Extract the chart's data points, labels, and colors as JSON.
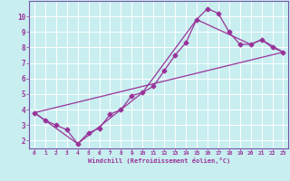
{
  "xlabel": "Windchill (Refroidissement éolien,°C)",
  "bg_color": "#c8eef0",
  "grid_color": "#ffffff",
  "line_color": "#993399",
  "spine_color": "#7755aa",
  "xlim": [
    -0.5,
    23.5
  ],
  "ylim": [
    1.5,
    11.0
  ],
  "xticks": [
    0,
    1,
    2,
    3,
    4,
    5,
    6,
    7,
    8,
    9,
    10,
    11,
    12,
    13,
    14,
    15,
    16,
    17,
    18,
    19,
    20,
    21,
    22,
    23
  ],
  "yticks": [
    2,
    3,
    4,
    5,
    6,
    7,
    8,
    9,
    10
  ],
  "series1_x": [
    0,
    1,
    2,
    3,
    4,
    5,
    6,
    7,
    8,
    9,
    10,
    11,
    12,
    13,
    14,
    15,
    16,
    17,
    18,
    19,
    20,
    21,
    22,
    23
  ],
  "series1_y": [
    3.8,
    3.3,
    3.0,
    2.7,
    1.8,
    2.5,
    2.8,
    3.7,
    4.0,
    4.9,
    5.1,
    5.5,
    6.5,
    7.5,
    8.3,
    9.8,
    10.5,
    10.2,
    9.0,
    8.2,
    8.2,
    8.5,
    8.0,
    7.7
  ],
  "series2_x": [
    0,
    23
  ],
  "series2_y": [
    3.8,
    7.7
  ],
  "series3_x": [
    0,
    4,
    10,
    15,
    20,
    21,
    23
  ],
  "series3_y": [
    3.8,
    1.8,
    5.1,
    9.8,
    8.2,
    8.5,
    7.7
  ]
}
